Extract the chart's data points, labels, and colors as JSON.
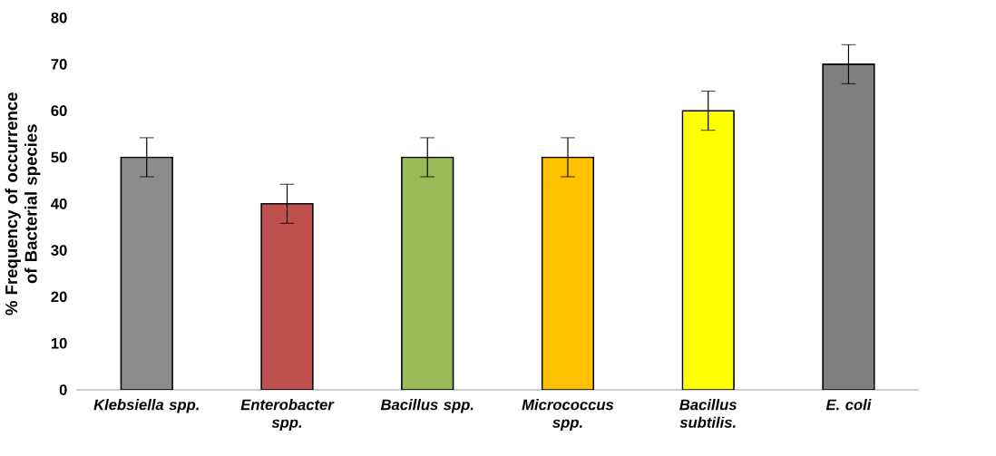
{
  "chart_data": {
    "type": "bar",
    "ylabel": "%  Frequency of occurrence of Bacterial species",
    "categories": [
      "Klebsiella spp.",
      "Enterobacter spp.",
      "Bacillus spp.",
      "Micrococcus spp.",
      "Bacillus subtilis.",
      "E. coli"
    ],
    "values": [
      50,
      40,
      50,
      50,
      60,
      70
    ],
    "errors": [
      4.2,
      4.2,
      4.2,
      4.2,
      4.2,
      4.2
    ],
    "colors": [
      "#8c8c8c",
      "#c0504d",
      "#9bbb59",
      "#ffc000",
      "#ffff00",
      "#7f7f7f"
    ],
    "ylim": [
      0,
      80
    ],
    "yticks": [
      0,
      10,
      20,
      30,
      40,
      50,
      60,
      70,
      80
    ],
    "grid": false
  }
}
